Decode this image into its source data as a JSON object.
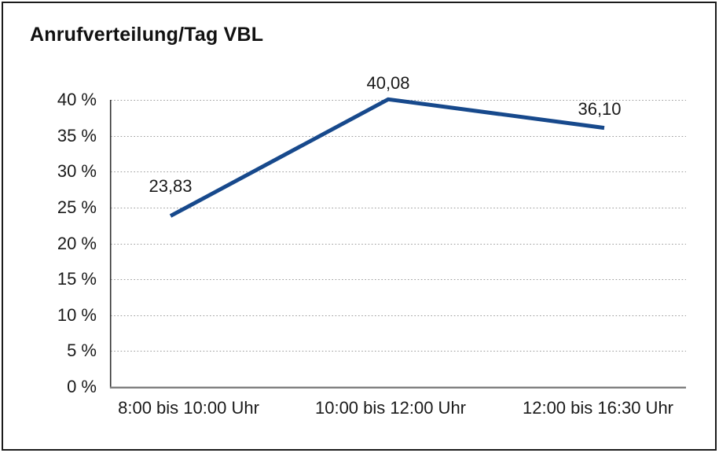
{
  "chart_data": {
    "type": "line",
    "title": "Anrufverteilung/Tag VBL",
    "categories": [
      "8:00 bis 10:00 Uhr",
      "10:00 bis 12:00 Uhr",
      "12:00 bis 16:30 Uhr"
    ],
    "values": [
      23.83,
      40.08,
      36.1
    ],
    "data_labels": [
      "23,83",
      "40,08",
      "36,10"
    ],
    "y_axis": {
      "ticks": [
        "40 %",
        "35 %",
        "30 %",
        "25 %",
        "20 %",
        "15 %",
        "10 %",
        "5 %",
        "0 %"
      ],
      "tick_values": [
        40,
        35,
        30,
        25,
        20,
        15,
        10,
        5,
        0
      ],
      "min": 0,
      "max": 40
    },
    "grid": {
      "horizontal": true,
      "style": "dotted"
    },
    "legend": "none",
    "colors": {
      "line": "#17498C",
      "grid": "#9b9b9b",
      "x_axis": "#7f7f7f",
      "y_axis": "#2e2e2e",
      "text": "#1a1a1a",
      "border": "#1b1b1b",
      "background": "#ffffff"
    }
  }
}
